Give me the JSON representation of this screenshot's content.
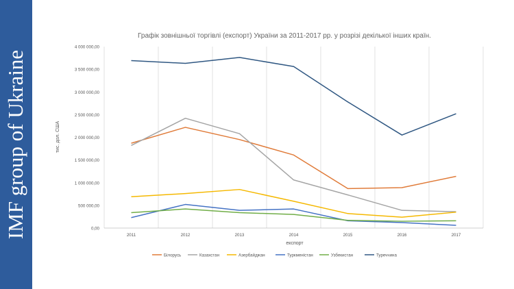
{
  "sidebar": {
    "text": "IMF group of Ukraine",
    "color": "#2e5c9c"
  },
  "chart_data": {
    "type": "line",
    "title": "Графік зовнішньої торгівлі (експорт) України за 2011-2017 рр. у розрізі декілької інших країн.",
    "xlabel": "експорт",
    "ylabel": "тис. дол. США",
    "x": [
      "2011",
      "2012",
      "2013",
      "2014",
      "2015",
      "2016",
      "2017"
    ],
    "ylim": [
      0,
      4000000
    ],
    "yticks": [
      0,
      500000,
      1000000,
      1500000,
      2000000,
      2500000,
      3000000,
      3500000,
      4000000
    ],
    "ytick_labels": [
      "0,00",
      "500 000,00",
      "1 000 000,00",
      "1 500 000,00",
      "2 000 000,00",
      "2 500 000,00",
      "3 000 000,00",
      "3 500 000,00",
      "4 000 000,00"
    ],
    "grid": "vertical",
    "legend": "bottom",
    "series": [
      {
        "name": "Білорусь",
        "color": "#e07b39",
        "values": [
          1870000,
          2220000,
          1950000,
          1610000,
          870000,
          890000,
          1140000
        ]
      },
      {
        "name": "Казахстан",
        "color": "#a5a5a5",
        "values": [
          1820000,
          2420000,
          2080000,
          1060000,
          730000,
          390000,
          360000
        ]
      },
      {
        "name": "Азербайджан",
        "color": "#f5b800",
        "values": [
          690000,
          760000,
          850000,
          590000,
          320000,
          240000,
          350000
        ]
      },
      {
        "name": "Туркменістан",
        "color": "#4472c4",
        "values": [
          230000,
          520000,
          390000,
          420000,
          160000,
          120000,
          60000
        ]
      },
      {
        "name": "Узбекистан",
        "color": "#70ad47",
        "values": [
          340000,
          420000,
          340000,
          300000,
          170000,
          150000,
          160000
        ]
      },
      {
        "name": "Туреччина",
        "color": "#2f5782",
        "values": [
          3690000,
          3630000,
          3760000,
          3560000,
          2780000,
          2050000,
          2520000
        ]
      }
    ]
  }
}
